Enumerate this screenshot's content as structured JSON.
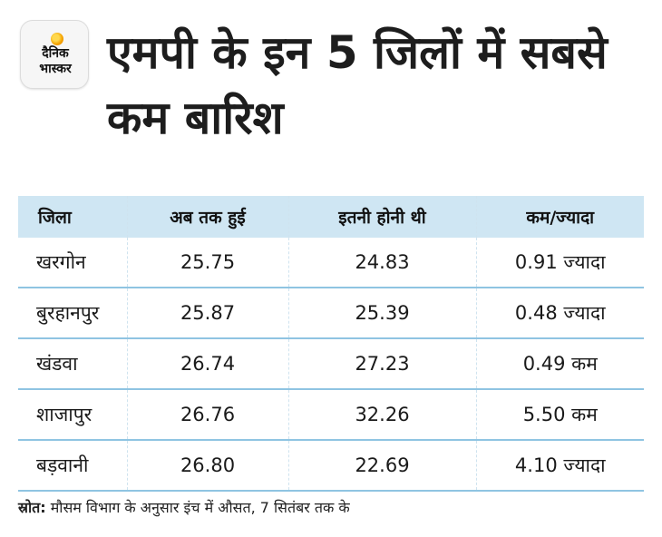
{
  "brand": {
    "line1": "दैनिक",
    "line2": "भास्कर"
  },
  "title": "एमपी के इन 5 जिलों में सबसे कम बारिश",
  "table": {
    "headers": [
      "जिला",
      "अब तक हुई",
      "इतनी होनी थी",
      "कम/ज्यादा"
    ],
    "rows": [
      [
        "खरगोन",
        "25.75",
        "24.83",
        "0.91 ज्यादा"
      ],
      [
        "बुरहानपुर",
        "25.87",
        "25.39",
        "0.48 ज्यादा"
      ],
      [
        "खंडवा",
        "26.74",
        "27.23",
        "0.49 कम"
      ],
      [
        "शाजापुर",
        "26.76",
        "32.26",
        "5.50 कम"
      ],
      [
        "बड़वानी",
        "26.80",
        "22.69",
        "4.10 ज्यादा"
      ]
    ]
  },
  "source": {
    "label": "स्रोत:",
    "text": " मौसम विभाग के अनुसार इंच में औसत, 7 सितंबर तक के"
  },
  "colors": {
    "header_bg": "#cfe6f3",
    "row_rule": "#8fc4e2",
    "logo_sun": "#f4a300"
  }
}
